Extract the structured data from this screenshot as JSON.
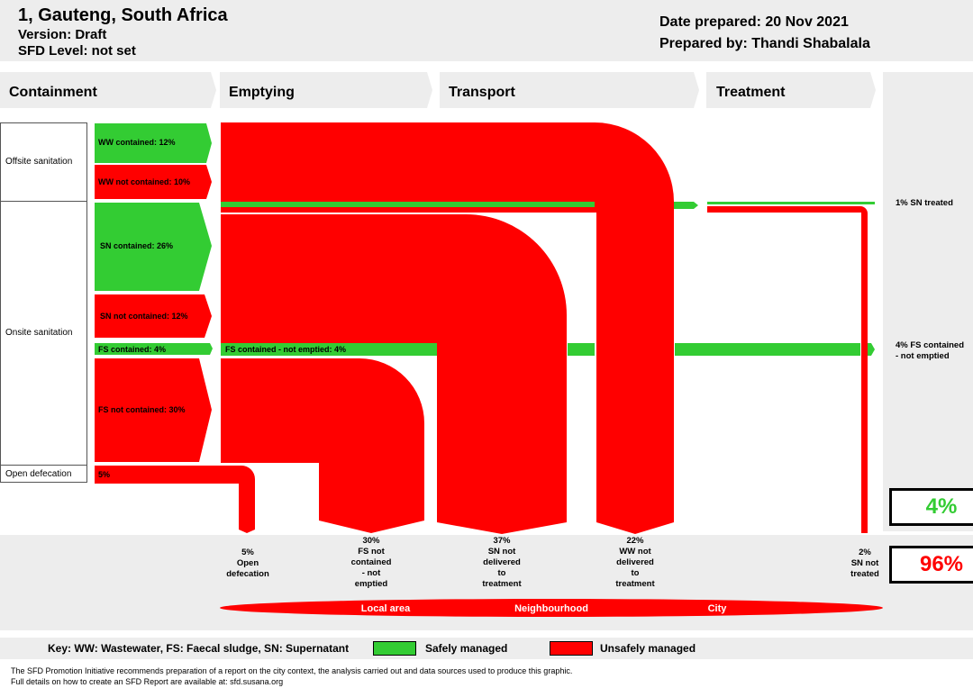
{
  "header": {
    "title": "1, Gauteng, South Africa",
    "version": "Version: Draft",
    "sfd_level": "SFD Level: not set",
    "date_prepared": "Date prepared: 20 Nov 2021",
    "prepared_by": "Prepared by: Thandi Shabalala"
  },
  "stages": [
    "Containment",
    "Emptying",
    "Transport",
    "Treatment"
  ],
  "categories": {
    "offsite": "Offsite sanitation",
    "onsite": "Onsite sanitation",
    "open": "Open defecation"
  },
  "flows": {
    "ww_contained": "WW contained: 12%",
    "ww_not_contained": "WW not contained: 10%",
    "sn_contained": "SN contained: 26%",
    "sn_not_contained": "SN not contained: 12%",
    "fs_contained": "FS contained: 4%",
    "fs_not_contained": "FS not contained: 30%",
    "open_def": "5%",
    "fs_contained_not_emptied": "FS contained - not emptied: 4%"
  },
  "right_labels": {
    "sn_treated": "1% SN treated",
    "fs_not_emptied_line1": "4% FS contained",
    "fs_not_emptied_line2": "- not emptied"
  },
  "bottom_labels": {
    "open": [
      "5%",
      "Open",
      "defecation"
    ],
    "fs": [
      "30%",
      "FS not",
      "contained",
      "- not",
      "emptied"
    ],
    "sn": [
      "37%",
      "SN not",
      "delivered",
      "to",
      "treatment"
    ],
    "ww": [
      "22%",
      "WW not",
      "delivered",
      "to",
      "treatment"
    ],
    "sn_nt": [
      "2%",
      "SN not",
      "treated"
    ]
  },
  "totals": {
    "safe": "4%",
    "unsafe": "96%"
  },
  "areas": {
    "local": "Local area",
    "neighbourhood": "Neighbourhood",
    "city": "City"
  },
  "key": {
    "text": "Key: WW: Wastewater, FS: Faecal sludge, SN: Supernatant",
    "safe": "Safely managed",
    "unsafe": "Unsafely managed"
  },
  "footer": {
    "line1": "The SFD Promotion Initiative recommends preparation of a report on the city context, the analysis carried out and data sources used to produce this graphic.",
    "line2": "Full details on how to create an SFD Report are available at: sfd.susana.org"
  },
  "colors": {
    "safe": "#33cc33",
    "unsafe": "#ff0000",
    "panel": "#ededed"
  }
}
